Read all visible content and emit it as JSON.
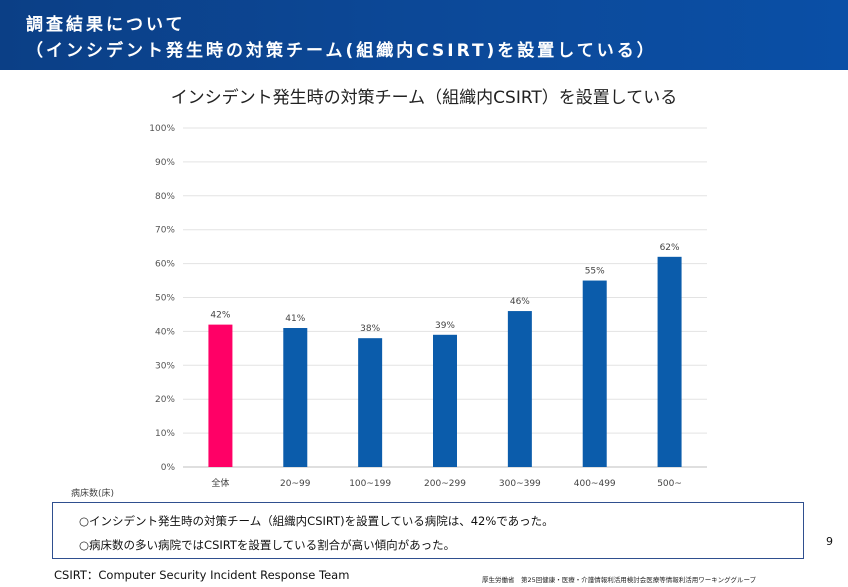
{
  "header": {
    "line1": "調査結果について",
    "line2": "（インシデント発生時の対策チーム(組織内CSIRT)を設置している）"
  },
  "chart_data": {
    "type": "bar",
    "title": "インシデント発生時の対策チーム（組織内CSIRT）を設置している",
    "xlabel": "病床数(床)",
    "ylabel": "",
    "categories": [
      "全体",
      "20~99",
      "100~199",
      "200~299",
      "300~399",
      "400~499",
      "500~"
    ],
    "values": [
      42,
      41,
      38,
      39,
      46,
      55,
      62
    ],
    "value_labels": [
      "42%",
      "41%",
      "38%",
      "39%",
      "46%",
      "55%",
      "62%"
    ],
    "ylim": [
      0,
      100
    ],
    "yticks": [
      "0%",
      "10%",
      "20%",
      "30%",
      "40%",
      "50%",
      "60%",
      "70%",
      "80%",
      "90%",
      "100%"
    ],
    "grid": true,
    "colors": {
      "highlight": "#ff0066",
      "bar": "#0b5cab"
    }
  },
  "notes": {
    "line1": "○インシデント発生時の対策チーム（組織内CSIRT)を設置している病院は、42%であった。",
    "line2": "○病床数の多い病院ではCSIRTを設置している割合が高い傾向があった。"
  },
  "page_number": "9",
  "footnote": "CSIRT：Computer Security Incident Response Team",
  "source": "厚生労働省　第25回健康・医療・介護情報利活用検討会医療等情報利活用ワーキンググループ"
}
